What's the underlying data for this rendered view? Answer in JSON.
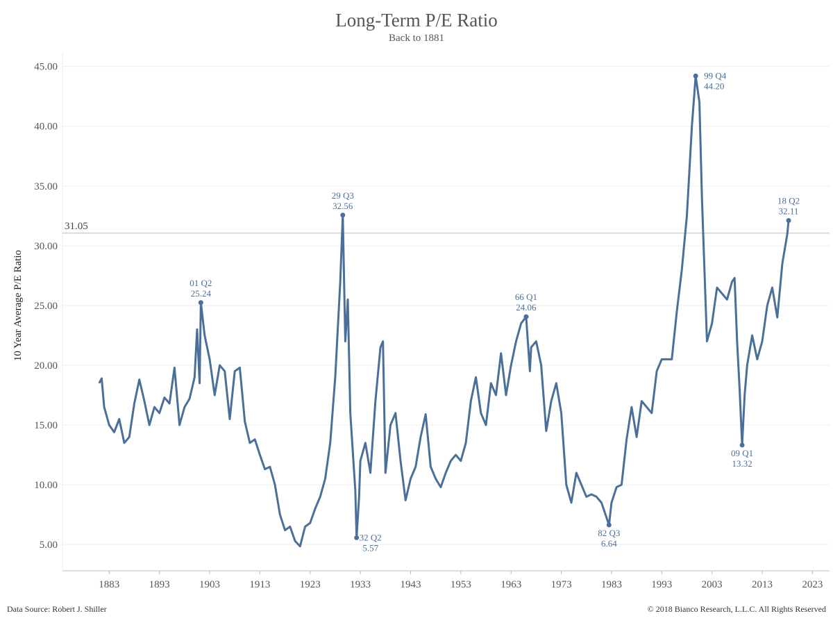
{
  "chart_data": {
    "type": "line",
    "title": "Long-Term P/E Ratio",
    "subtitle": "Back to 1881",
    "y_label": "10 Year Average P/E Ratio",
    "source": "Data Source: Robert J. Shiller",
    "copyright": "© 2018 Bianco Research, L.L.C. All Rights Reserved",
    "x": [
      1881,
      1881.5,
      1882,
      1883,
      1884,
      1885,
      1886,
      1887,
      1888,
      1889,
      1890,
      1891,
      1892,
      1893,
      1894,
      1895,
      1896,
      1897,
      1898,
      1899,
      1900,
      1900.5,
      1901,
      1901.25,
      1902,
      1903,
      1904,
      1905,
      1906,
      1907,
      1908,
      1909,
      1910,
      1911,
      1912,
      1913,
      1914,
      1915,
      1916,
      1917,
      1918,
      1919,
      1920,
      1921,
      1922,
      1923,
      1924,
      1925,
      1926,
      1927,
      1928,
      1929,
      1929.5,
      1930,
      1930.5,
      1931,
      1932,
      1932.25,
      1932.75,
      1933,
      1934,
      1935,
      1936,
      1937,
      1937.5,
      1938,
      1939,
      1940,
      1941,
      1942,
      1943,
      1944,
      1945,
      1946,
      1947,
      1948,
      1949,
      1950,
      1951,
      1952,
      1953,
      1954,
      1955,
      1956,
      1957,
      1958,
      1959,
      1960,
      1961,
      1962,
      1963,
      1964,
      1965,
      1966,
      1966.75,
      1967,
      1968,
      1969,
      1970,
      1971,
      1972,
      1973,
      1974,
      1975,
      1976,
      1977,
      1978,
      1979,
      1980,
      1981,
      1982.5,
      1983,
      1984,
      1985,
      1986,
      1987,
      1988,
      1989,
      1990,
      1991,
      1992,
      1993,
      1994,
      1995,
      1996,
      1997,
      1998,
      1999,
      1999.75,
      2000.5,
      2001,
      2001.5,
      2002,
      2003,
      2004,
      2005,
      2006,
      2007,
      2007.5,
      2008,
      2008.5,
      2009,
      2009.5,
      2010,
      2011,
      2012,
      2013,
      2014,
      2015,
      2016,
      2017,
      2018,
      2018.25,
      2018.5
    ],
    "series": [
      {
        "color": "#4a6f99",
        "values": [
          18.5,
          18.9,
          16.5,
          15.0,
          14.4,
          15.5,
          13.5,
          14.0,
          16.8,
          18.8,
          17.0,
          15.0,
          16.5,
          16.0,
          17.3,
          16.8,
          19.8,
          15.0,
          16.5,
          17.2,
          19.0,
          23.0,
          18.5,
          25.24,
          22.5,
          20.5,
          17.5,
          20.0,
          19.5,
          15.5,
          19.5,
          19.8,
          15.3,
          13.5,
          13.8,
          12.5,
          11.3,
          11.5,
          10.0,
          7.5,
          6.2,
          6.5,
          5.3,
          4.85,
          6.5,
          6.8,
          8.0,
          9.0,
          10.5,
          13.5,
          19.0,
          27.0,
          32.56,
          22.0,
          25.5,
          16.0,
          9.5,
          5.57,
          9.0,
          12.0,
          13.5,
          11.0,
          17.0,
          21.5,
          22.0,
          11.0,
          15.0,
          16.0,
          12.0,
          8.7,
          10.5,
          11.5,
          14.0,
          15.9,
          11.5,
          10.5,
          9.8,
          11.0,
          12.0,
          12.5,
          12.0,
          13.5,
          17.0,
          19.0,
          16.0,
          15.0,
          18.5,
          17.5,
          21.0,
          17.5,
          20.0,
          22.0,
          23.5,
          24.06,
          19.5,
          21.5,
          22.0,
          20.0,
          14.5,
          17.0,
          18.5,
          16.0,
          10.0,
          8.5,
          11.0,
          10.0,
          9.0,
          9.2,
          9.0,
          8.5,
          6.64,
          8.5,
          9.8,
          10.0,
          13.8,
          16.5,
          14.0,
          17.0,
          16.5,
          16.0,
          19.5,
          20.5,
          20.5,
          20.5,
          24.5,
          28.0,
          32.5,
          40.0,
          44.2,
          42.0,
          34.0,
          28.0,
          22.0,
          23.5,
          26.5,
          26.0,
          25.5,
          27.0,
          27.3,
          22.0,
          18.0,
          13.32,
          17.5,
          20.0,
          22.5,
          20.5,
          22.0,
          25.0,
          26.5,
          24.0,
          28.5,
          31.0,
          32.11,
          32.0
        ]
      }
    ],
    "xlim": [
      1873.7,
      2026.4
    ],
    "ylim": [
      2.8,
      46.2
    ],
    "xticks": [
      1883,
      1893,
      1903,
      1913,
      1923,
      1933,
      1943,
      1953,
      1963,
      1973,
      1983,
      1993,
      2003,
      2013,
      2023
    ],
    "yticks": [
      {
        "value": 5,
        "label": "5.00"
      },
      {
        "value": 10,
        "label": "10.00"
      },
      {
        "value": 15,
        "label": "15.00"
      },
      {
        "value": 20,
        "label": "20.00"
      },
      {
        "value": 25,
        "label": "25.00"
      },
      {
        "value": 30,
        "label": "30.00"
      },
      {
        "value": 35,
        "label": "35.00"
      },
      {
        "value": 40,
        "label": "40.00"
      },
      {
        "value": 45,
        "label": "45.00"
      }
    ],
    "grid": true,
    "reference_line": {
      "value": 31.05,
      "label": "31.05"
    },
    "annotations": [
      {
        "text": "01 Q2",
        "x": 1901.25,
        "value": 25.24,
        "placement": "above"
      },
      {
        "text": "29 Q3",
        "x": 1929.5,
        "value": 32.56,
        "placement": "above"
      },
      {
        "text": "32 Q2",
        "x": 1932.25,
        "value": 5.57,
        "placement": "right-below"
      },
      {
        "text": "66 Q1",
        "x": 1966,
        "value": 24.06,
        "placement": "above"
      },
      {
        "text": "82 Q3",
        "x": 1982.5,
        "value": 6.64,
        "placement": "below"
      },
      {
        "text": "99 Q4",
        "x": 1999.75,
        "value": 44.2,
        "value_label": "44.20",
        "placement": "right"
      },
      {
        "text": "09 Q1",
        "x": 2009,
        "value": 13.32,
        "placement": "below"
      },
      {
        "text": "18 Q2",
        "x": 2018.25,
        "value": 32.11,
        "placement": "above"
      }
    ]
  }
}
